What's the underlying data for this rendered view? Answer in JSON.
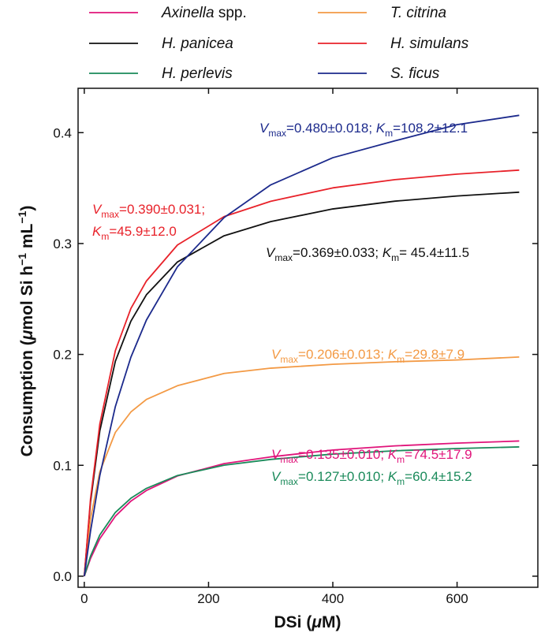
{
  "chart_data": {
    "type": "line",
    "xlabel": "DSi (μM)",
    "ylabel": "Consumption (μmol Si h⁻¹ mL⁻¹)",
    "xlim": [
      -10,
      730
    ],
    "ylim": [
      -0.01,
      0.44
    ],
    "xticks": [
      0,
      200,
      400,
      600
    ],
    "yticks": [
      0.0,
      0.1,
      0.2,
      0.3,
      0.4
    ],
    "ytick_labels": [
      "0.0",
      "0.1",
      "0.2",
      "0.3",
      "0.4"
    ],
    "grid": false,
    "legend_position": "top",
    "x": [
      0,
      10,
      25,
      50,
      75,
      100,
      150,
      225,
      300,
      400,
      500,
      600,
      700
    ],
    "series": [
      {
        "name": "Axinella spp.",
        "italic_part": "Axinella",
        "plain_part": " spp.",
        "color": "#e0147a",
        "values": [
          0,
          0.0159,
          0.0338,
          0.0541,
          0.0677,
          0.0773,
          0.0904,
          0.1015,
          0.1076,
          0.1138,
          0.1175,
          0.12,
          0.1219
        ],
        "annotation": {
          "vmax": "0.135±0.010",
          "km": "74.5±17.9"
        }
      },
      {
        "name": "H. panicea",
        "italic_part": "H. panicea",
        "plain_part": "",
        "color": "#111111",
        "values": [
          0,
          0.0668,
          0.1311,
          0.1938,
          0.23,
          0.2538,
          0.2834,
          0.307,
          0.3198,
          0.3312,
          0.3382,
          0.3429,
          0.3463
        ],
        "annotation": {
          "vmax": "0.369±0.033",
          "km": " 45.4±11.5"
        }
      },
      {
        "name": "H. perlevis",
        "italic_part": "H. perlevis",
        "plain_part": "",
        "color": "#1a8a5a",
        "values": [
          0,
          0.0181,
          0.0372,
          0.0575,
          0.0703,
          0.0792,
          0.0908,
          0.1001,
          0.1053,
          0.1101,
          0.1131,
          0.1151,
          0.1166
        ],
        "annotation": {
          "vmax": "0.127±0.010",
          "km": "60.4±15.2"
        }
      },
      {
        "name": "T. citrina",
        "italic_part": "T. citrina",
        "plain_part": "",
        "color": "#f39a45",
        "values": [
          0,
          0.0518,
          0.0942,
          0.1297,
          0.1481,
          0.1594,
          0.1718,
          0.1828,
          0.1876,
          0.1911,
          0.1934,
          0.195,
          0.1977
        ],
        "annotation": {
          "vmax": "0.206±0.013",
          "km": "29.8±7.9"
        }
      },
      {
        "name": "H. simulans",
        "italic_part": "H. simulans",
        "plain_part": "",
        "color": "#e8222a",
        "values": [
          0,
          0.0696,
          0.1373,
          0.2034,
          0.2414,
          0.2662,
          0.2987,
          0.3243,
          0.3381,
          0.3502,
          0.3576,
          0.3626,
          0.3662
        ],
        "annotation": {
          "vmax": "0.390±0.031",
          "km": "45.9±12.0"
        }
      },
      {
        "name": "S. ficus",
        "italic_part": "S. ficus",
        "plain_part": "",
        "color": "#1c2a8c",
        "values": [
          0,
          0.0405,
          0.0908,
          0.153,
          0.1975,
          0.231,
          0.2791,
          0.3234,
          0.3529,
          0.3774,
          0.3926,
          0.4072,
          0.4156
        ],
        "annotation": {
          "vmax": "0.480±0.018",
          "km": "108.2±12.1"
        }
      }
    ]
  }
}
